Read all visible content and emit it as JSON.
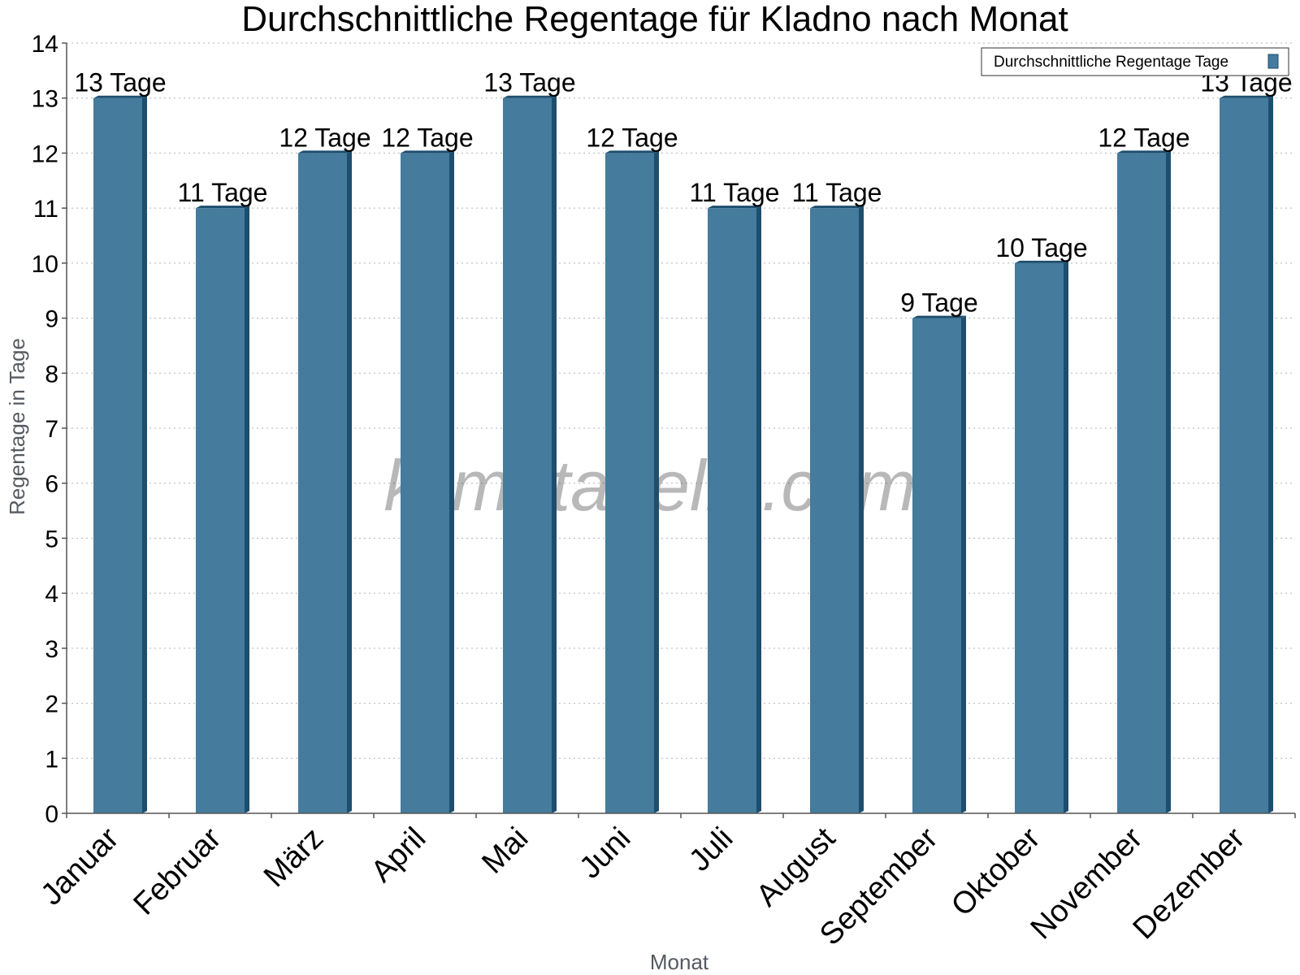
{
  "chart_data": {
    "type": "bar",
    "title": "Durchschnittliche Regentage für Kladno nach Monat",
    "xlabel": "Monat",
    "ylabel": "Regentage in Tage",
    "ylim": [
      0,
      14
    ],
    "yticks": [
      0,
      1,
      2,
      3,
      4,
      5,
      6,
      7,
      8,
      9,
      10,
      11,
      12,
      13,
      14
    ],
    "grid": true,
    "legend_position": "top-right",
    "categories": [
      "Januar",
      "Februar",
      "März",
      "April",
      "Mai",
      "Juni",
      "Juli",
      "August",
      "September",
      "Oktober",
      "November",
      "Dezember"
    ],
    "series": [
      {
        "name": "Durchschnittliche Regentage Tage",
        "values": [
          13,
          11,
          12,
          12,
          13,
          12,
          11,
          11,
          9,
          10,
          12,
          13
        ],
        "labels": [
          "13 Tage",
          "11 Tage",
          "12 Tage",
          "12 Tage",
          "13 Tage",
          "12 Tage",
          "11 Tage",
          "11 Tage",
          "9 Tage",
          "10 Tage",
          "12 Tage",
          "13 Tage"
        ],
        "color": "#457b9d",
        "side_color": "#1d4e6e"
      }
    ]
  },
  "watermark": "klimatabelle.com"
}
